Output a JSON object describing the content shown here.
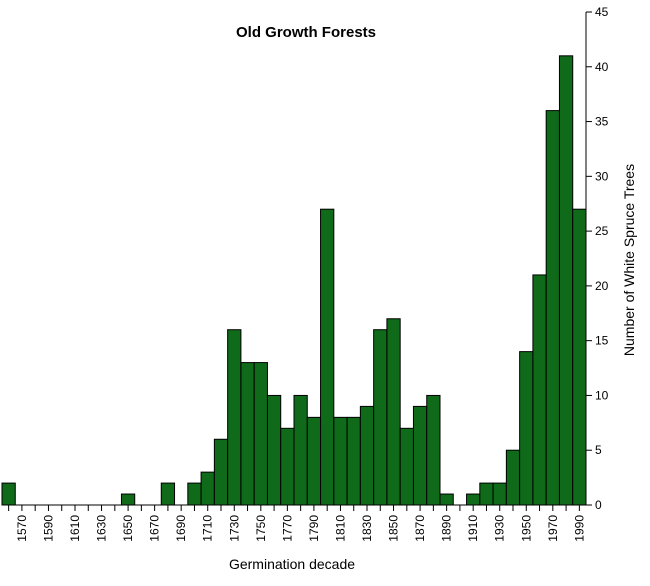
{
  "chart_data": {
    "type": "bar",
    "title": "Old Growth Forests",
    "xlabel": "Germination decade",
    "ylabel": "Number of White Spruce Trees",
    "ylim": [
      0,
      45
    ],
    "yticks": [
      0,
      5,
      10,
      15,
      20,
      25,
      30,
      35,
      40,
      45
    ],
    "xtick_labels": [
      "1570",
      "1590",
      "1610",
      "1630",
      "1650",
      "1670",
      "1690",
      "1710",
      "1730",
      "1750",
      "1770",
      "1790",
      "1810",
      "1830",
      "1850",
      "1870",
      "1890",
      "1910",
      "1930",
      "1950",
      "1970",
      "1990"
    ],
    "categories": [
      "1560",
      "1570",
      "1580",
      "1590",
      "1600",
      "1610",
      "1620",
      "1630",
      "1640",
      "1650",
      "1660",
      "1670",
      "1680",
      "1690",
      "1700",
      "1710",
      "1720",
      "1730",
      "1740",
      "1750",
      "1760",
      "1770",
      "1780",
      "1790",
      "1800",
      "1810",
      "1820",
      "1830",
      "1840",
      "1850",
      "1860",
      "1870",
      "1880",
      "1890",
      "1900",
      "1910",
      "1920",
      "1930",
      "1940",
      "1950",
      "1960",
      "1970",
      "1980",
      "1990"
    ],
    "values": [
      2,
      0,
      0,
      0,
      0,
      0,
      0,
      0,
      0,
      1,
      0,
      0,
      2,
      0,
      2,
      3,
      6,
      16,
      13,
      13,
      10,
      7,
      10,
      8,
      27,
      8,
      8,
      9,
      16,
      17,
      7,
      9,
      10,
      1,
      0,
      1,
      2,
      2,
      5,
      14,
      21,
      36,
      41,
      27
    ],
    "bar_color": "#0f6a1a",
    "y_axis_side": "right",
    "grid": false,
    "legend": "none"
  }
}
